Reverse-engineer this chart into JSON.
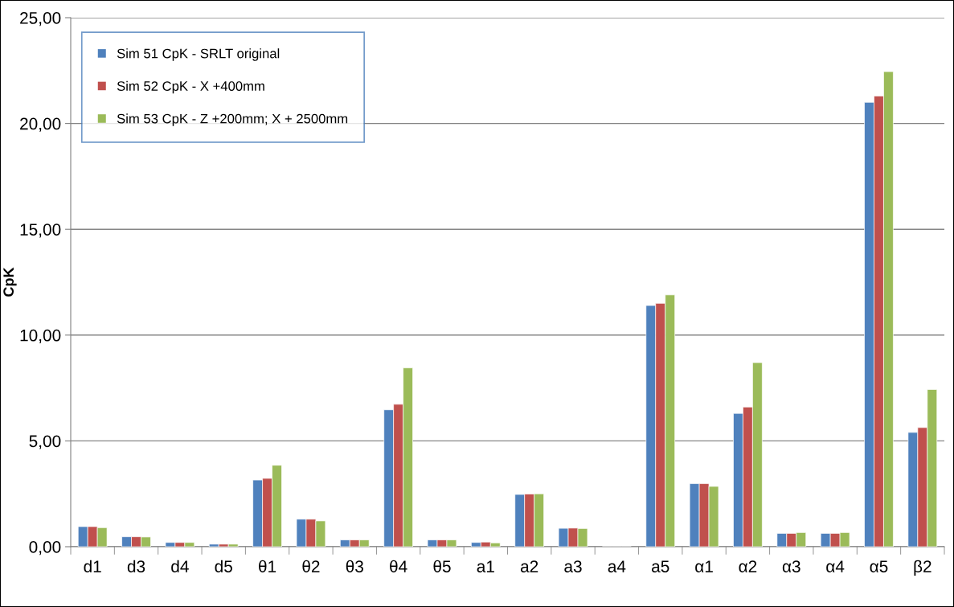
{
  "chart_data": {
    "type": "bar",
    "ylabel": "CpK",
    "categories": [
      "d1",
      "d3",
      "d4",
      "d5",
      "θ1",
      "θ2",
      "θ3",
      "θ4",
      "θ5",
      "a1",
      "a2",
      "a3",
      "a4",
      "a5",
      "α1",
      "α2",
      "α3",
      "α4",
      "α5",
      "β2"
    ],
    "series": [
      {
        "name": "Sim 51 CpK - SRLT original",
        "color": "#4f81bd",
        "values": [
          0.95,
          0.47,
          0.2,
          0.12,
          3.15,
          1.3,
          0.32,
          6.47,
          0.32,
          0.2,
          2.47,
          0.87,
          null,
          11.4,
          2.98,
          6.3,
          0.63,
          0.63,
          21.0,
          5.4
        ]
      },
      {
        "name": "Sim 52 CpK - X +400mm",
        "color": "#c0504d",
        "values": [
          0.95,
          0.47,
          0.2,
          0.12,
          3.23,
          1.3,
          0.32,
          6.73,
          0.32,
          0.22,
          2.49,
          0.88,
          null,
          11.5,
          2.98,
          6.6,
          0.63,
          0.63,
          21.3,
          5.63
        ]
      },
      {
        "name": "Sim 53 CpK - Z +200mm; X + 2500mm",
        "color": "#9bbb59",
        "values": [
          0.9,
          0.46,
          0.2,
          0.12,
          3.85,
          1.22,
          0.32,
          8.45,
          0.32,
          0.18,
          2.5,
          0.86,
          null,
          11.9,
          2.85,
          8.7,
          0.67,
          0.67,
          22.45,
          7.43
        ]
      }
    ],
    "ylim": [
      0,
      25
    ],
    "yticks": [
      {
        "value": 0,
        "label": "0,00"
      },
      {
        "value": 5,
        "label": "5,00"
      },
      {
        "value": 10,
        "label": "10,00"
      },
      {
        "value": 15,
        "label": "15,00"
      },
      {
        "value": 20,
        "label": "20,00"
      },
      {
        "value": 25,
        "label": "25,00"
      }
    ],
    "grid": "y",
    "legend": "top left"
  }
}
